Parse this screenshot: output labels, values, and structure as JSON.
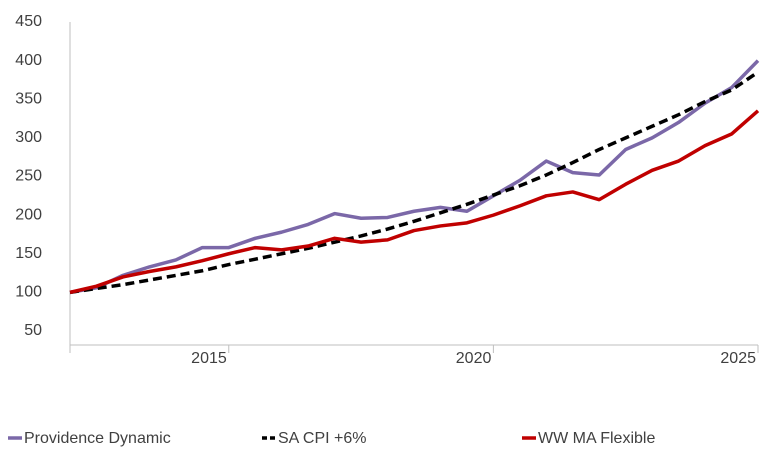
{
  "chart_data": {
    "type": "line",
    "x": [
      2012,
      2012.5,
      2013,
      2013.5,
      2014,
      2014.5,
      2015,
      2015.5,
      2016,
      2016.5,
      2017,
      2017.5,
      2018,
      2018.5,
      2019,
      2019.5,
      2020,
      2020.5,
      2021,
      2021.5,
      2022,
      2022.5,
      2023,
      2023.5,
      2024,
      2024.5,
      2025
    ],
    "series": [
      {
        "name": "Providence Dynamic",
        "color": "#7b68a8",
        "dash": false,
        "values": [
          100,
          106,
          122,
          133,
          142,
          158,
          158,
          170,
          178,
          188,
          202,
          196,
          197,
          205,
          210,
          205,
          225,
          245,
          270,
          255,
          252,
          285,
          300,
          320,
          345,
          365,
          400
        ]
      },
      {
        "name": "SA CPI +6%",
        "color": "#000000",
        "dash": true,
        "values": [
          100,
          105,
          110,
          116,
          122,
          128,
          136,
          143,
          150,
          157,
          165,
          173,
          182,
          192,
          203,
          214,
          226,
          238,
          252,
          268,
          285,
          300,
          315,
          330,
          347,
          362,
          385
        ]
      },
      {
        "name": "WW MA Flexible",
        "color": "#c00000",
        "dash": false,
        "values": [
          100,
          108,
          120,
          127,
          133,
          141,
          150,
          158,
          155,
          160,
          170,
          165,
          168,
          180,
          186,
          190,
          200,
          212,
          225,
          230,
          220,
          240,
          258,
          270,
          290,
          305,
          335
        ]
      }
    ],
    "xlim": [
      2012,
      2025
    ],
    "xticks": [
      2015,
      2020,
      2025
    ],
    "ylim": [
      50,
      450
    ],
    "yticks": [
      50,
      100,
      150,
      200,
      250,
      300,
      350,
      400,
      450
    ]
  }
}
